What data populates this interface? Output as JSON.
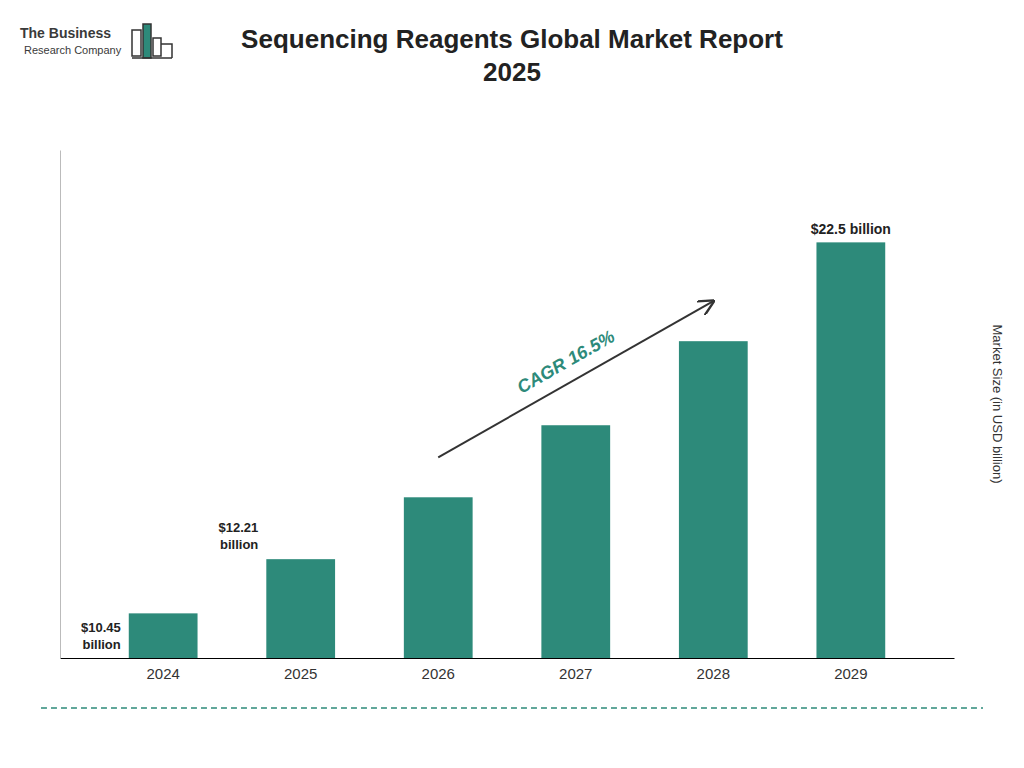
{
  "chart_data": {
    "type": "bar",
    "title": "Sequencing Reagents Global Market Report\n2025",
    "ylabel": "Market Size (in USD billion)",
    "categories": [
      "2024",
      "2025",
      "2026",
      "2027",
      "2028",
      "2029"
    ],
    "values": [
      10.45,
      12.21,
      14.22,
      16.56,
      19.29,
      22.5
    ],
    "value_labels": [
      "$10.45\nbillion",
      "$12.21\nbillion",
      null,
      null,
      null,
      "$22.5 billion"
    ],
    "color": "#2d8a7a",
    "ylim": [
      9.0,
      25.5
    ],
    "grid": false,
    "tick_labels": "x",
    "annotations": [
      "CAGR 16.5%",
      "The Business",
      "Research Company"
    ]
  }
}
